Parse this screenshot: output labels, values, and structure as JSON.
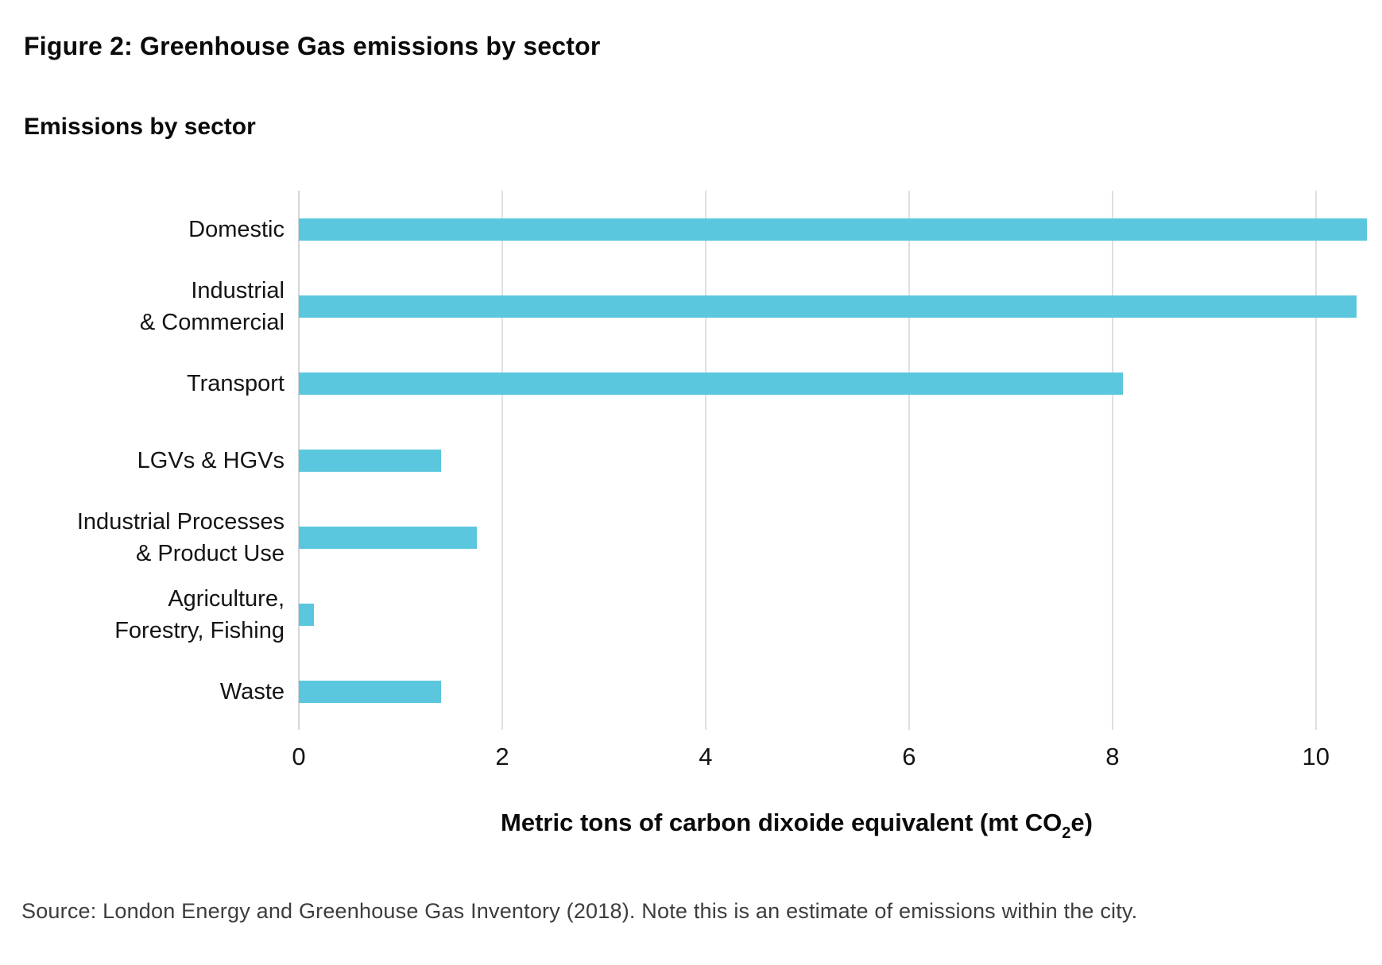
{
  "header": {
    "figure_title": "Figure 2: Greenhouse Gas emissions by sector"
  },
  "chart": {
    "subtitle": "Emissions by sector",
    "xlabel_prefix": "Metric tons of carbon dixoide equivalent (mt CO",
    "xlabel_sub": "2",
    "xlabel_suffix": "e)"
  },
  "chart_data": {
    "type": "bar",
    "orientation": "horizontal",
    "title": "Emissions by sector",
    "figure_label": "Figure 2: Greenhouse Gas emissions by sector",
    "categories": [
      "Domestic",
      "Industrial\n& Commercial",
      "Transport",
      "LGVs & HGVs",
      "Industrial Processes\n& Product Use",
      "Agriculture,\nForestry, Fishing",
      "Waste"
    ],
    "values": [
      10.5,
      10.4,
      8.1,
      1.4,
      1.75,
      0.15,
      1.4
    ],
    "xlabel": "Metric tons of carbon dixoide equivalent (mt CO2e)",
    "xticks": [
      0,
      2,
      4,
      6,
      8,
      10
    ],
    "xlim": [
      0,
      10.65
    ],
    "grid": "vertical",
    "legend_position": "none",
    "bar_color": "#5BC7DE",
    "gridline_color": "#DDE1E3"
  },
  "footer": {
    "source": "Source: London Energy and Greenhouse Gas Inventory (2018). Note this is an estimate of emissions within the city."
  }
}
